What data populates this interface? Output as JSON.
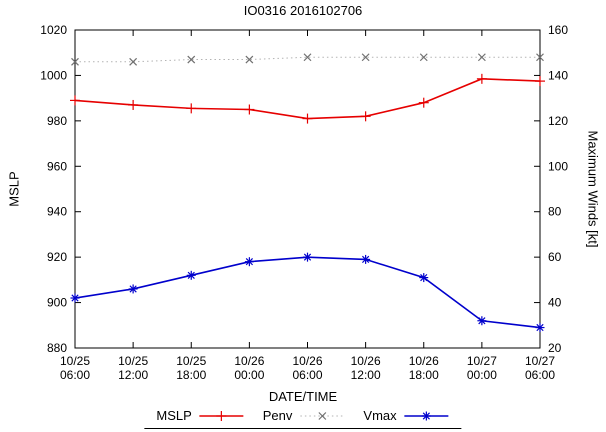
{
  "title": "IO0316 2016102706",
  "chart_data": {
    "type": "line",
    "title": "IO0316 2016102706",
    "xlabel": "DATE/TIME",
    "legend_position": "bottom",
    "grid": false,
    "categories": [
      [
        "10/25",
        "06:00"
      ],
      [
        "10/25",
        "12:00"
      ],
      [
        "10/25",
        "18:00"
      ],
      [
        "10/26",
        "00:00"
      ],
      [
        "10/26",
        "06:00"
      ],
      [
        "10/26",
        "12:00"
      ],
      [
        "10/26",
        "18:00"
      ],
      [
        "10/27",
        "00:00"
      ],
      [
        "10/27",
        "06:00"
      ]
    ],
    "left_axis": {
      "label": "MSLP",
      "min": 880,
      "max": 1020,
      "tick_step": 20
    },
    "right_axis": {
      "label": "Maximum Winds [kt]",
      "min": 20,
      "max": 160,
      "tick_step": 20
    },
    "series": [
      {
        "name": "MSLP",
        "axis": "left",
        "color": "#e60000",
        "marker": "plus",
        "line": "solid",
        "values": [
          989,
          987,
          985.5,
          985,
          981,
          982,
          988,
          998.5,
          997.5
        ]
      },
      {
        "name": "Penv",
        "axis": "left",
        "color": "#b3b3b3",
        "marker_color": "#707070",
        "marker": "cross",
        "line": "dotted",
        "values": [
          1006,
          1006,
          1007,
          1007,
          1008,
          1008,
          1008,
          1008,
          1008
        ]
      },
      {
        "name": "Vmax",
        "axis": "right",
        "color": "#0000cc",
        "marker": "star",
        "line": "solid",
        "values": [
          42,
          46,
          52,
          58,
          60,
          59,
          51,
          32,
          29
        ]
      }
    ]
  }
}
